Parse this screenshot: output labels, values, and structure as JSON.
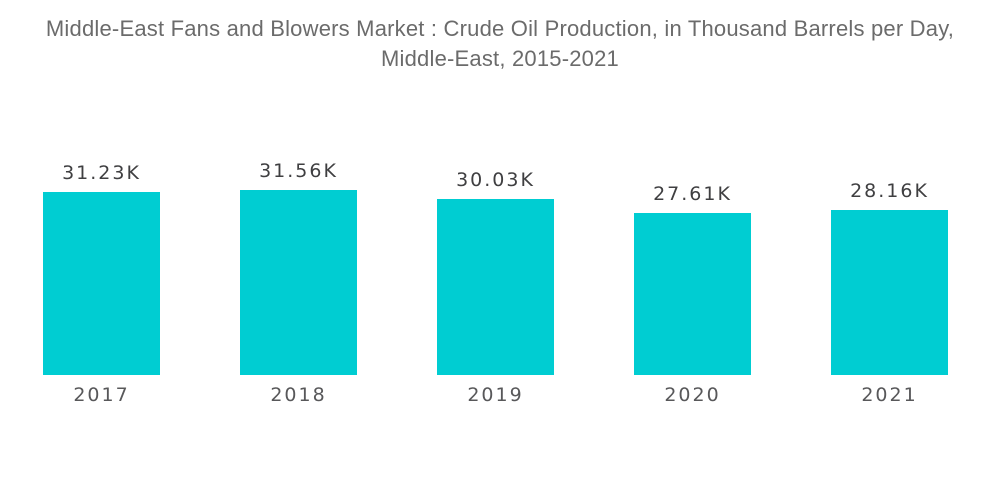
{
  "title": {
    "line1": "Middle-East Fans and Blowers Market : Crude Oil Production, in Thousand Barrels per Day,",
    "line2": "Middle-East, 2015-2021"
  },
  "chart_data": {
    "type": "bar",
    "title": "Middle-East Fans and Blowers Market : Crude Oil Production, in Thousand Barrels per Day, Middle-East, 2015-2021",
    "unit": "Thousand Barrels per Day",
    "categories": [
      "2017",
      "2018",
      "2019",
      "2020",
      "2021"
    ],
    "values": [
      31230,
      31560,
      30030,
      27610,
      28160
    ],
    "value_labels": [
      "31.23K",
      "31.56K",
      "30.03K",
      "27.61K",
      "28.16K"
    ],
    "xlabel": "",
    "ylabel": "",
    "ylim": [
      0,
      31560
    ],
    "grid": false,
    "legend": false,
    "axes_visible": false,
    "colors": {
      "bar": "#00CDD2",
      "title_text": "#6B6B6B",
      "value_label_text": "#3F3F41",
      "axis_label_text": "#58585A",
      "background": "#FFFFFF"
    }
  }
}
